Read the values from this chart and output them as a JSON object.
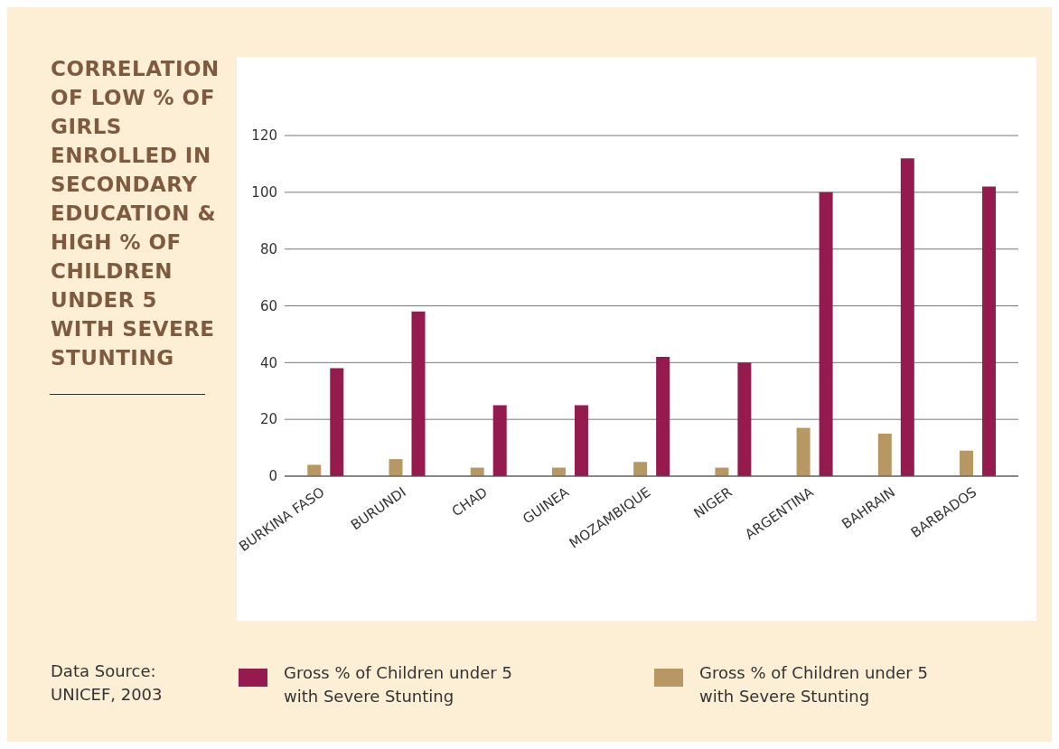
{
  "chart_data": {
    "type": "bar",
    "title": "CORRELATION OF LOW % OF GIRLS ENROLLED IN SECONDARY EDUCATION & HIGH % OF CHILDREN UNDER 5 WITH SEVERE STUNTING",
    "categories": [
      "BURKINA FASO",
      "BURUNDI",
      "CHAD",
      "GUINEA",
      "MOZAMBIQUE",
      "NIGER",
      "ARGENTINA",
      "BAHRAIN",
      "BARBADOS"
    ],
    "series": [
      {
        "name": "Gross % of Children under 5 with Severe Stunting",
        "color": "#b89862",
        "values": [
          4,
          6,
          3,
          3,
          5,
          3,
          17,
          15,
          9
        ]
      },
      {
        "name": "Gross % of Children under 5 with Severe Stunting",
        "color": "#951b4f",
        "values": [
          38,
          58,
          25,
          25,
          42,
          40,
          100,
          112,
          102
        ]
      }
    ],
    "ylim": [
      0,
      120
    ],
    "yticks": [
      0,
      20,
      40,
      60,
      80,
      100,
      120
    ],
    "grid": "y",
    "legend": "bottom",
    "annotations": [
      "Data Source: UNICEF, 2003"
    ]
  }
}
